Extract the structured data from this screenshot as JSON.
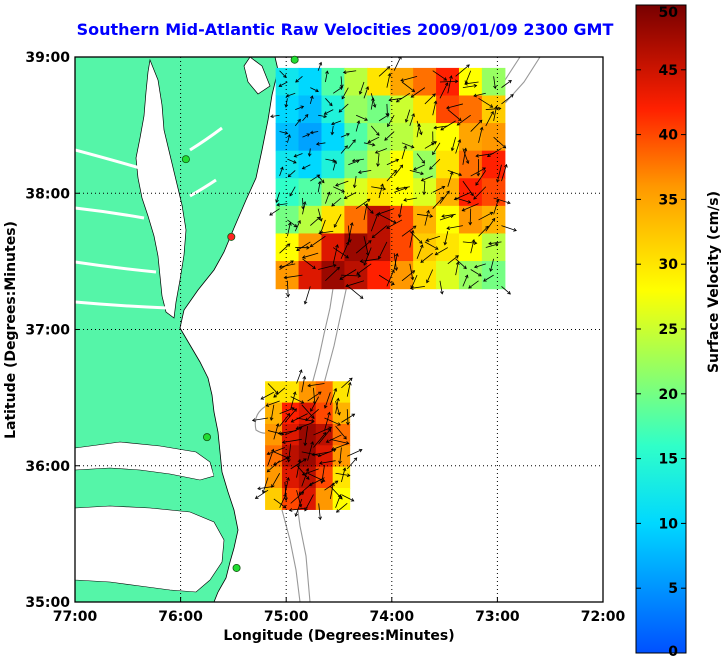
{
  "title": "Southern Mid-Atlantic Raw Velocities 2009/01/09 2300 GMT",
  "xlabel": "Longitude (Degrees:Minutes)",
  "ylabel": "Latitude (Degrees:Minutes)",
  "colorbar_label": "Surface Velocity (cm/s)",
  "x_ticks": [
    {
      "lon": -77,
      "label": "77:00"
    },
    {
      "lon": -76,
      "label": "76:00"
    },
    {
      "lon": -75,
      "label": "75:00"
    },
    {
      "lon": -74,
      "label": "74:00"
    },
    {
      "lon": -73,
      "label": "73:00"
    },
    {
      "lon": -72,
      "label": "72:00"
    }
  ],
  "y_ticks": [
    {
      "lat": 39,
      "label": "39:00"
    },
    {
      "lat": 38,
      "label": "38:00"
    },
    {
      "lat": 37,
      "label": "37:00"
    },
    {
      "lat": 36,
      "label": "36:00"
    },
    {
      "lat": 35,
      "label": "35:00"
    }
  ],
  "colorbar": {
    "min": 0,
    "max": 50,
    "ticks": [
      "0",
      "5",
      "10",
      "15",
      "20",
      "25",
      "30",
      "35",
      "40",
      "45",
      "50"
    ]
  },
  "colors": {
    "title": "#0000ff",
    "land": "#55f5a8",
    "grid": "#000000",
    "bathymetry": "#999999",
    "station_green": "#22dd33",
    "station_red": "#ff2222"
  },
  "chart_data": {
    "type": "heatmap",
    "xlim": [
      -77,
      -72
    ],
    "ylim": [
      35,
      39
    ],
    "grid": "dotted",
    "stations": [
      {
        "lon": -74.92,
        "lat": 38.98,
        "status": "green"
      },
      {
        "lon": -75.95,
        "lat": 38.25,
        "status": "green"
      },
      {
        "lon": -75.52,
        "lat": 37.68,
        "status": "red"
      },
      {
        "lon": -75.75,
        "lat": 36.21,
        "status": "green"
      },
      {
        "lon": -75.47,
        "lat": 35.25,
        "status": "green"
      }
    ],
    "regions": [
      {
        "name": "north",
        "lon_range": [
          -75.1,
          -72.93
        ],
        "lat_range": [
          37.3,
          38.92
        ],
        "velocity_cm_s": [
          [
            12,
            10,
            18,
            24,
            30,
            35,
            38,
            42,
            28,
            22
          ],
          [
            10,
            8,
            14,
            22,
            20,
            25,
            30,
            40,
            38,
            32
          ],
          [
            8,
            6,
            10,
            18,
            22,
            24,
            26,
            28,
            35,
            36
          ],
          [
            12,
            10,
            14,
            20,
            24,
            28,
            22,
            30,
            38,
            42
          ],
          [
            16,
            18,
            22,
            26,
            30,
            28,
            26,
            34,
            42,
            40
          ],
          [
            20,
            24,
            30,
            38,
            46,
            40,
            34,
            28,
            36,
            34
          ],
          [
            28,
            36,
            44,
            48,
            46,
            40,
            32,
            30,
            28,
            24
          ],
          [
            36,
            44,
            48,
            46,
            42,
            36,
            30,
            26,
            22,
            20
          ]
        ]
      },
      {
        "name": "south",
        "lon_range": [
          -75.2,
          -74.4
        ],
        "lat_range": [
          35.68,
          36.62
        ],
        "velocity_cm_s": [
          [
            30,
            30,
            36,
            38,
            30
          ],
          [
            34,
            42,
            44,
            40,
            34
          ],
          [
            36,
            44,
            48,
            46,
            38
          ],
          [
            38,
            46,
            48,
            44,
            36
          ],
          [
            36,
            44,
            46,
            40,
            30
          ],
          [
            32,
            40,
            44,
            36,
            28
          ]
        ]
      }
    ]
  }
}
